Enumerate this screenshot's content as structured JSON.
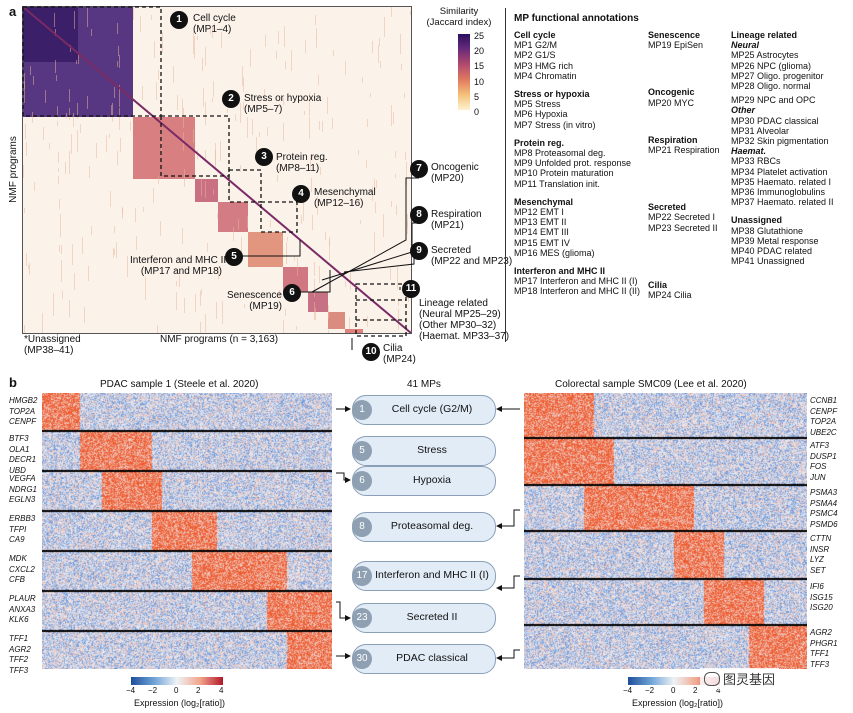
{
  "panel_a": {
    "letter": "a",
    "y_axis_label": "NMF programs",
    "x_axis_label": "NMF programs (n = 3,163)",
    "colorbar": {
      "title_line1": "Similarity",
      "title_line2": "(Jaccard index)",
      "ticks": [
        "25",
        "20",
        "15",
        "10",
        "5",
        "0"
      ]
    },
    "unassigned_note_line1": "*Unassigned",
    "unassigned_note_line2": "(MP38–41)",
    "clusters": [
      {
        "num": "1",
        "name": "Cell cycle",
        "mps": "(MP1–4)"
      },
      {
        "num": "2",
        "name": "Stress or hypoxia",
        "mps": "(MP5–7)"
      },
      {
        "num": "3",
        "name": "Protein reg.",
        "mps": "(MP8–11)"
      },
      {
        "num": "4",
        "name": "Mesenchymal",
        "mps": "(MP12–16)"
      },
      {
        "num": "5",
        "name": "Interferon and MHC II",
        "mps": "(MP17 and MP18)"
      },
      {
        "num": "6",
        "name": "Senescence",
        "mps": "(MP19)"
      },
      {
        "num": "7",
        "name": "Oncogenic",
        "mps": "(MP20)"
      },
      {
        "num": "8",
        "name": "Respiration",
        "mps": "(MP21)"
      },
      {
        "num": "9",
        "name": "Secreted",
        "mps": "(MP22 and MP23)"
      },
      {
        "num": "10",
        "name": "Cilia",
        "mps": "(MP24)"
      },
      {
        "num": "11",
        "name": "Lineage related",
        "mps": "(Neural MP25–29)",
        "extra1": "(Other MP30–32)",
        "extra2": "(Haemat. MP33–37)"
      }
    ],
    "annotations_title": "MP functional annotations",
    "annotations": {
      "col1": [
        {
          "head": "Cell cycle",
          "items": [
            "MP1 G2/M",
            "MP2 G1/S",
            "MP3 HMG rich",
            "MP4 Chromatin"
          ]
        },
        {
          "head": "Stress or hypoxia",
          "items": [
            "MP5 Stress",
            "MP6 Hypoxia",
            "MP7 Stress (in vitro)"
          ]
        },
        {
          "head": "Protein reg.",
          "items": [
            "MP8 Proteasomal deg.",
            "MP9 Unfolded prot. response",
            "MP10 Protein maturation",
            "MP11 Translation init."
          ]
        },
        {
          "head": "Mesenchymal",
          "items": [
            "MP12 EMT I",
            "MP13 EMT II",
            "MP14 EMT III",
            "MP15 EMT IV",
            "MP16 MES (glioma)"
          ]
        },
        {
          "head": "Interferon and MHC II",
          "items": [
            "MP17 Interferon and MHC II (I)",
            "MP18 Interferon and MHC II (II)"
          ]
        }
      ],
      "col2": [
        {
          "head": "Senescence",
          "items": [
            "MP19 EpiSen"
          ]
        },
        {
          "head": "Oncogenic",
          "items": [
            "MP20 MYC"
          ]
        },
        {
          "head": "Respiration",
          "items": [
            "MP21 Respiration"
          ]
        },
        {
          "head": "Secreted",
          "items": [
            "MP22 Secreted I",
            "MP23 Secreted II"
          ]
        },
        {
          "head": "Cilia",
          "items": [
            "MP24 Cilia"
          ]
        }
      ],
      "col3": {
        "lineage_head": "Lineage related",
        "neural_head": "Neural",
        "neural": [
          "MP25 Astrocytes",
          "MP26 NPC (glioma)",
          "MP27 Oligo. progenitor",
          "MP28 Oligo. normal",
          "MP29 NPC and OPC"
        ],
        "other_head": "Other",
        "other": [
          "MP30 PDAC classical",
          "MP31 Alveolar",
          "MP32 Skin pigmentation"
        ],
        "haemat_head": "Haemat.",
        "haemat": [
          "MP33 RBCs",
          "MP34 Platelet activation",
          "MP35 Haemato. related I",
          "MP36 Immunoglobulins",
          "MP37 Haemato. related II"
        ],
        "unassigned_head": "Unassigned",
        "unassigned": [
          "MP38 Glutathione",
          "MP39 Metal response",
          "MP40 PDAC related",
          "MP41 Unassigned"
        ]
      }
    }
  },
  "panel_b": {
    "letter": "b",
    "left_title": "PDAC sample 1 (Steele et al. 2020)",
    "center_title": "41 MPs",
    "right_title": "Colorectal sample SMC09 (Lee et al. 2020)",
    "left_genes": [
      [
        "HMGB2",
        "TOP2A",
        "CENPF"
      ],
      [
        "BTF3",
        "OLA1",
        "DECR1",
        "UBD"
      ],
      [
        "VEGFA",
        "NDRG1",
        "EGLN3"
      ],
      [
        "ERBB3",
        "TFPI",
        "CA9"
      ],
      [
        "MDK",
        "CXCL2",
        "CFB"
      ],
      [
        "PLAUR",
        "ANXA3",
        "KLK6"
      ],
      [
        "TFF1",
        "AGR2",
        "TFF2",
        "TFF3"
      ]
    ],
    "right_genes": [
      [
        "CCNB1",
        "CENPF",
        "TOP2A",
        "UBE2C"
      ],
      [
        "ATF3",
        "DUSP1",
        "FOS",
        "JUN"
      ],
      [
        "PSMA3",
        "PSMA4",
        "PSMC4",
        "PSMD6"
      ],
      [
        "CTTN",
        "INSR",
        "LYZ",
        "SET"
      ],
      [
        "IFI6",
        "ISG15",
        "ISG20"
      ],
      [
        "AGR2",
        "PHGR1",
        "TFF1",
        "TFF3"
      ]
    ],
    "mps": [
      {
        "num": "1",
        "label": "Cell cycle (G2/M)"
      },
      {
        "num": "5",
        "label": "Stress"
      },
      {
        "num": "6",
        "label": "Hypoxia"
      },
      {
        "num": "8",
        "label": "Proteasomal deg."
      },
      {
        "num": "17",
        "label": "Interferon and MHC II (I)"
      },
      {
        "num": "23",
        "label": "Secreted II"
      },
      {
        "num": "30",
        "label": "PDAC classical"
      }
    ],
    "colorbar": {
      "ticks": [
        "−4",
        "−2",
        "0",
        "2",
        "4"
      ],
      "label": "Expression (log₂[ratio])"
    },
    "watermark": "图灵基因"
  }
}
